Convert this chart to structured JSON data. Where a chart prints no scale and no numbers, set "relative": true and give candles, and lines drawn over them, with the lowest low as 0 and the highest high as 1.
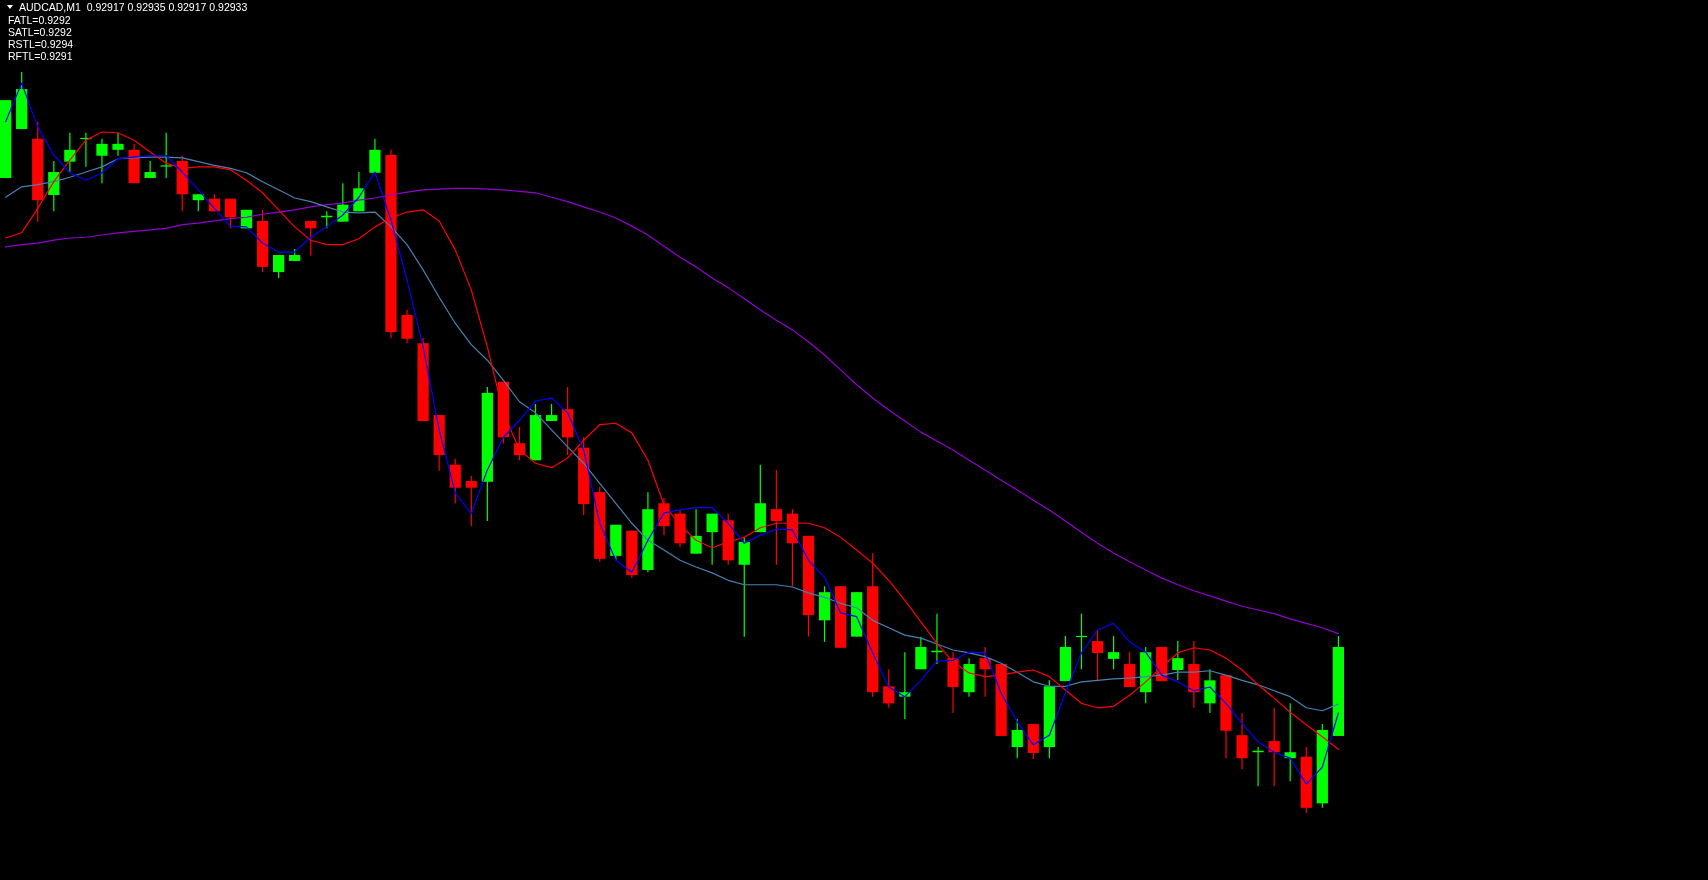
{
  "chart_data": {
    "type": "candlestick",
    "relative": true,
    "annotations": [
      "AUDCAD,M1  0.92917 0.92935 0.92917 0.92933",
      "FATL=0.9292",
      "SATL=0.9292",
      "RSTL=0.9294",
      "RFTL=0.9291"
    ],
    "categories": [
      null,
      null,
      null,
      null,
      null,
      null,
      null,
      null,
      null,
      null,
      null,
      null,
      null,
      null,
      null,
      null,
      null,
      null,
      null,
      null,
      null,
      null,
      null,
      null,
      null,
      null,
      null,
      null,
      null,
      null,
      null,
      null,
      null,
      null,
      null,
      null,
      null,
      null,
      null,
      null,
      null,
      null,
      null,
      null,
      null,
      null,
      null,
      null,
      null,
      null,
      null,
      null,
      null,
      null,
      null,
      null,
      null,
      null,
      null,
      null,
      null,
      null,
      null,
      null,
      null,
      null,
      null,
      null,
      null,
      null,
      null,
      null,
      null,
      null,
      null,
      null,
      null,
      null,
      null,
      null,
      null,
      null,
      null,
      null
    ],
    "ohlc": [
      [
        0.857,
        0.962,
        0.857,
        0.962
      ],
      [
        0.923,
        1,
        0.923,
        0.977
      ],
      [
        0.91,
        0.933,
        0.798,
        0.827
      ],
      [
        0.834,
        0.88,
        0.812,
        0.865
      ],
      [
        0.879,
        0.918,
        0.865,
        0.895
      ],
      [
        0.91,
        0.918,
        0.872,
        0.911
      ],
      [
        0.887,
        0.91,
        0.85,
        0.903
      ],
      [
        0.895,
        0.918,
        0.887,
        0.903
      ],
      [
        0.895,
        0.903,
        0.85,
        0.85
      ],
      [
        0.857,
        0.88,
        0.857,
        0.865
      ],
      [
        0.873,
        0.918,
        0.857,
        0.874
      ],
      [
        0.88,
        0.887,
        0.812,
        0.835
      ],
      [
        0.827,
        0.835,
        0.812,
        0.835
      ],
      [
        0.829,
        0.835,
        0.812,
        0.812
      ],
      [
        0.829,
        0.829,
        0.789,
        0.804
      ],
      [
        0.789,
        0.814,
        0.789,
        0.814
      ],
      [
        0.799,
        0.814,
        0.73,
        0.737
      ],
      [
        0.73,
        0.753,
        0.722,
        0.753
      ],
      [
        0.745,
        0.761,
        0.745,
        0.753
      ],
      [
        0.799,
        0.799,
        0.752,
        0.789
      ],
      [
        0.804,
        0.812,
        0.789,
        0.806
      ],
      [
        0.798,
        0.85,
        0.798,
        0.821
      ],
      [
        0.812,
        0.865,
        0.812,
        0.843
      ],
      [
        0.864,
        0.91,
        0.864,
        0.895
      ],
      [
        0.888,
        0.895,
        0.641,
        0.649
      ],
      [
        0.672,
        0.679,
        0.634,
        0.64
      ],
      [
        0.634,
        0.641,
        0.529,
        0.529
      ],
      [
        0.537,
        0.537,
        0.462,
        0.483
      ],
      [
        0.47,
        0.478,
        0.418,
        0.439
      ],
      [
        0.448,
        0.455,
        0.387,
        0.439
      ],
      [
        0.447,
        0.575,
        0.394,
        0.567
      ],
      [
        0.582,
        0.582,
        0.499,
        0.507
      ],
      [
        0.499,
        0.521,
        0.476,
        0.483
      ],
      [
        0.476,
        0.552,
        0.476,
        0.537
      ],
      [
        0.529,
        0.552,
        0.529,
        0.537
      ],
      [
        0.545,
        0.575,
        0.483,
        0.507
      ],
      [
        0.493,
        0.507,
        0.402,
        0.417
      ],
      [
        0.433,
        0.44,
        0.339,
        0.343
      ],
      [
        0.347,
        0.389,
        0.341,
        0.389
      ],
      [
        0.381,
        0.381,
        0.317,
        0.321
      ],
      [
        0.328,
        0.433,
        0.325,
        0.41
      ],
      [
        0.418,
        0.425,
        0.375,
        0.387
      ],
      [
        0.404,
        0.409,
        0.359,
        0.364
      ],
      [
        0.35,
        0.41,
        0.35,
        0.374
      ],
      [
        0.379,
        0.404,
        0.335,
        0.404
      ],
      [
        0.395,
        0.404,
        0.335,
        0.341
      ],
      [
        0.335,
        0.372,
        0.238,
        0.366
      ],
      [
        0.379,
        0.47,
        0.379,
        0.418
      ],
      [
        0.41,
        0.463,
        0.335,
        0.394
      ],
      [
        0.404,
        0.41,
        0.306,
        0.364
      ],
      [
        0.374,
        0.374,
        0.238,
        0.267
      ],
      [
        0.26,
        0.306,
        0.231,
        0.298
      ],
      [
        0.306,
        0.306,
        0.223,
        0.223
      ],
      [
        0.238,
        0.298,
        0.238,
        0.298
      ],
      [
        0.306,
        0.351,
        0.157,
        0.163
      ],
      [
        0.171,
        0.194,
        0.142,
        0.148
      ],
      [
        0.157,
        0.217,
        0.127,
        0.163
      ],
      [
        0.194,
        0.238,
        0.194,
        0.224
      ],
      [
        0.217,
        0.269,
        0.201,
        0.219
      ],
      [
        0.209,
        0.217,
        0.135,
        0.17
      ],
      [
        0.163,
        0.209,
        0.157,
        0.201
      ],
      [
        0.209,
        0.224,
        0.157,
        0.194
      ],
      [
        0.201,
        0.201,
        0.104,
        0.104
      ],
      [
        0.089,
        0.127,
        0.074,
        0.112
      ],
      [
        0.12,
        0.12,
        0.073,
        0.081
      ],
      [
        0.089,
        0.179,
        0.074,
        0.171
      ],
      [
        0.178,
        0.239,
        0.178,
        0.224
      ],
      [
        0.238,
        0.269,
        0.194,
        0.239
      ],
      [
        0.232,
        0.247,
        0.179,
        0.216
      ],
      [
        0.208,
        0.239,
        0.194,
        0.217
      ],
      [
        0.201,
        0.217,
        0.17,
        0.17
      ],
      [
        0.163,
        0.224,
        0.148,
        0.217
      ],
      [
        0.224,
        0.224,
        0.178,
        0.178
      ],
      [
        0.193,
        0.232,
        0.179,
        0.209
      ],
      [
        0.201,
        0.232,
        0.142,
        0.163
      ],
      [
        0.148,
        0.194,
        0.135,
        0.179
      ],
      [
        0.186,
        0.186,
        0.074,
        0.111
      ],
      [
        0.105,
        0.135,
        0.059,
        0.074
      ],
      [
        0.082,
        0.089,
        0.036,
        0.084
      ],
      [
        0.097,
        0.142,
        0.036,
        0.082
      ],
      [
        0.074,
        0.148,
        0.043,
        0.082
      ],
      [
        0.076,
        0.089,
        0,
        0.007
      ],
      [
        0.013,
        0.12,
        0.007,
        0.112
      ],
      [
        0.104,
        0.239,
        0.104,
        0.224
      ]
    ],
    "colors": [
      "#00ff00",
      "#00ff00",
      "#ff0000",
      "#00ff00",
      "#00ff00",
      "#00ff00",
      "#00ff00",
      "#00ff00",
      "#ff0000",
      "#00ff00",
      "#00ff00",
      "#ff0000",
      "#00ff00",
      "#ff0000",
      "#ff0000",
      "#00ff00",
      "#ff0000",
      "#00ff00",
      "#00ff00",
      "#ff0000",
      "#00ff00",
      "#00ff00",
      "#00ff00",
      "#00ff00",
      "#ff0000",
      "#ff0000",
      "#ff0000",
      "#ff0000",
      "#ff0000",
      "#ff0000",
      "#00ff00",
      "#ff0000",
      "#ff0000",
      "#00ff00",
      "#00ff00",
      "#ff0000",
      "#ff0000",
      "#ff0000",
      "#00ff00",
      "#ff0000",
      "#00ff00",
      "#ff0000",
      "#ff0000",
      "#00ff00",
      "#00ff00",
      "#ff0000",
      "#00ff00",
      "#00ff00",
      "#ff0000",
      "#ff0000",
      "#ff0000",
      "#00ff00",
      "#ff0000",
      "#00ff00",
      "#ff0000",
      "#ff0000",
      "#00ff00",
      "#00ff00",
      "#00ff00",
      "#ff0000",
      "#00ff00",
      "#ff0000",
      "#ff0000",
      "#00ff00",
      "#ff0000",
      "#00ff00",
      "#00ff00",
      "#00ff00",
      "#ff0000",
      "#00ff00",
      "#ff0000",
      "#00ff00",
      "#ff0000",
      "#00ff00",
      "#ff0000",
      "#00ff00",
      "#ff0000",
      "#ff0000",
      "#00ff00",
      "#ff0000",
      "#00ff00",
      "#ff0000",
      "#00ff00",
      "#00ff00"
    ],
    "series": [
      {
        "type": "line",
        "color": "#9400d3",
        "values": [
          0.764,
          0.767,
          0.769,
          0.773,
          0.776,
          0.777,
          0.78,
          0.783,
          0.785,
          0.787,
          0.789,
          0.794,
          0.796,
          0.799,
          0.802,
          0.804,
          0.808,
          0.811,
          0.814,
          0.818,
          0.821,
          0.823,
          0.827,
          0.83,
          0.834,
          0.838,
          0.841,
          0.842,
          0.843,
          0.843,
          0.842,
          0.841,
          0.839,
          0.837,
          0.831,
          0.825,
          0.818,
          0.811,
          0.803,
          0.792,
          0.78,
          0.765,
          0.75,
          0.737,
          0.722,
          0.709,
          0.694,
          0.679,
          0.665,
          0.652,
          0.636,
          0.618,
          0.598,
          0.578,
          0.56,
          0.544,
          0.529,
          0.514,
          0.502,
          0.49,
          0.476,
          0.463,
          0.449,
          0.436,
          0.422,
          0.409,
          0.394,
          0.379,
          0.364,
          0.351,
          0.339,
          0.328,
          0.317,
          0.308,
          0.3,
          0.293,
          0.286,
          0.279,
          0.274,
          0.269,
          0.262,
          0.256,
          0.25,
          0.242
        ]
      },
      {
        "type": "line",
        "color": "#4682b4",
        "values": [
          0.831,
          0.845,
          0.848,
          0.852,
          0.858,
          0.865,
          0.872,
          0.883,
          0.884,
          0.885,
          0.885,
          0.884,
          0.879,
          0.874,
          0.87,
          0.864,
          0.852,
          0.841,
          0.83,
          0.825,
          0.818,
          0.811,
          0.81,
          0.811,
          0.791,
          0.767,
          0.733,
          0.696,
          0.661,
          0.632,
          0.611,
          0.584,
          0.555,
          0.54,
          0.517,
          0.494,
          0.472,
          0.445,
          0.418,
          0.391,
          0.368,
          0.355,
          0.341,
          0.332,
          0.324,
          0.314,
          0.308,
          0.308,
          0.308,
          0.305,
          0.297,
          0.291,
          0.283,
          0.277,
          0.26,
          0.25,
          0.24,
          0.236,
          0.228,
          0.22,
          0.216,
          0.211,
          0.202,
          0.19,
          0.177,
          0.171,
          0.171,
          0.177,
          0.179,
          0.181,
          0.182,
          0.184,
          0.186,
          0.19,
          0.19,
          0.192,
          0.186,
          0.179,
          0.173,
          0.165,
          0.157,
          0.142,
          0.138,
          0.147
        ]
      },
      {
        "type": "line",
        "color": "#ff0000",
        "values": [
          0.776,
          0.783,
          0.816,
          0.852,
          0.881,
          0.908,
          0.919,
          0.918,
          0.908,
          0.892,
          0.877,
          0.87,
          0.872,
          0.872,
          0.868,
          0.854,
          0.837,
          0.814,
          0.791,
          0.773,
          0.767,
          0.767,
          0.775,
          0.791,
          0.803,
          0.811,
          0.814,
          0.799,
          0.76,
          0.706,
          0.629,
          0.54,
          0.49,
          0.472,
          0.466,
          0.479,
          0.503,
          0.524,
          0.526,
          0.513,
          0.476,
          0.416,
          0.389,
          0.368,
          0.358,
          0.366,
          0.372,
          0.385,
          0.391,
          0.391,
          0.391,
          0.385,
          0.372,
          0.355,
          0.337,
          0.314,
          0.287,
          0.258,
          0.229,
          0.204,
          0.189,
          0.184,
          0.186,
          0.19,
          0.193,
          0.184,
          0.166,
          0.148,
          0.142,
          0.144,
          0.159,
          0.177,
          0.197,
          0.216,
          0.223,
          0.22,
          0.209,
          0.193,
          0.173,
          0.155,
          0.136,
          0.119,
          0.103,
          0.086
        ]
      },
      {
        "type": "line",
        "color": "#0000ff",
        "values": [
          0.933,
          0.985,
          0.926,
          0.888,
          0.864,
          0.854,
          0.864,
          0.883,
          0.885,
          0.887,
          0.887,
          0.865,
          0.841,
          0.816,
          0.792,
          0.791,
          0.769,
          0.757,
          0.757,
          0.777,
          0.791,
          0.807,
          0.831,
          0.865,
          0.8,
          0.719,
          0.629,
          0.517,
          0.432,
          0.404,
          0.463,
          0.507,
          0.53,
          0.556,
          0.56,
          0.54,
          0.49,
          0.391,
          0.341,
          0.325,
          0.368,
          0.405,
          0.409,
          0.412,
          0.412,
          0.391,
          0.364,
          0.375,
          0.383,
          0.382,
          0.341,
          0.318,
          0.27,
          0.265,
          0.216,
          0.17,
          0.157,
          0.179,
          0.205,
          0.206,
          0.217,
          0.216,
          0.162,
          0.123,
          0.092,
          0.105,
          0.162,
          0.216,
          0.247,
          0.256,
          0.231,
          0.217,
          0.186,
          0.177,
          0.165,
          0.17,
          0.148,
          0.121,
          0.096,
          0.082,
          0.074,
          0.039,
          0.062,
          0.135
        ]
      }
    ]
  }
}
